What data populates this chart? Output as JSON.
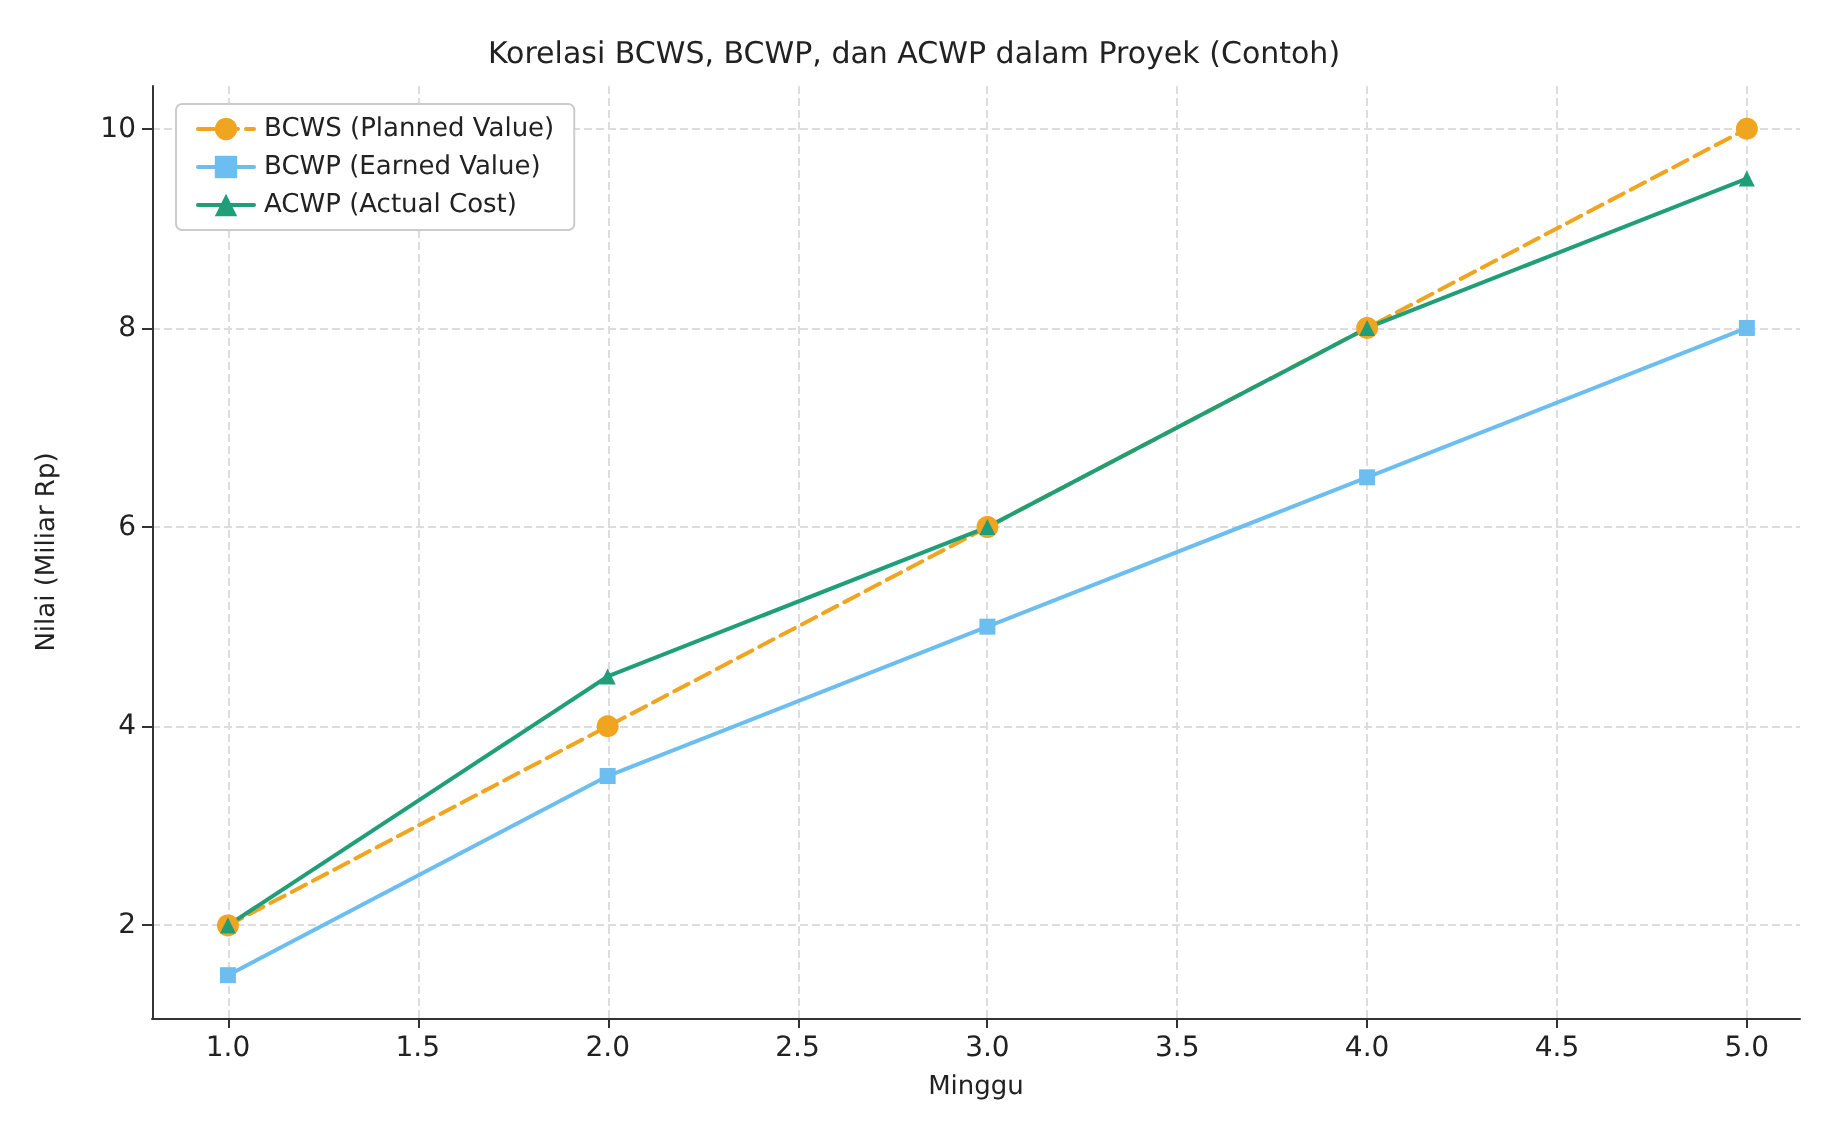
{
  "chart_data": {
    "type": "line",
    "title": "Korelasi BCWS, BCWP, dan ACWP dalam Proyek (Contoh)",
    "xlabel": "Minggu",
    "ylabel": "Nilai (Miliar Rp)",
    "x": [
      1,
      2,
      3,
      4,
      5
    ],
    "series": [
      {
        "name": "BCWS (Planned Value)",
        "color": "#f0a520",
        "values": [
          2,
          4,
          6,
          8,
          10
        ],
        "marker": "circle",
        "line_style": "dashed"
      },
      {
        "name": "BCWP (Earned Value)",
        "color": "#6cbdf0",
        "values": [
          1.5,
          3.5,
          5,
          6.5,
          8
        ],
        "marker": "square",
        "line_style": "solid"
      },
      {
        "name": "ACWP (Actual Cost)",
        "color": "#1f9e77",
        "values": [
          2,
          4.5,
          6,
          8,
          9.5
        ],
        "marker": "triangle",
        "line_style": "solid"
      }
    ],
    "xlim": [
      0.8,
      5.14
    ],
    "xticks": [
      {
        "value": 1,
        "label": "1.0"
      },
      {
        "value": 1.5,
        "label": "1.5"
      },
      {
        "value": 2,
        "label": "2.0"
      },
      {
        "value": 2.5,
        "label": "2.5"
      },
      {
        "value": 3,
        "label": "3.0"
      },
      {
        "value": 3.5,
        "label": "3.5"
      },
      {
        "value": 4,
        "label": "4.0"
      },
      {
        "value": 4.5,
        "label": "4.5"
      },
      {
        "value": 5,
        "label": "5.0"
      }
    ],
    "ylim": [
      1.07,
      10.43
    ],
    "yticks": [
      2,
      4,
      6,
      8,
      10
    ],
    "grid": true,
    "legend": "top left"
  }
}
